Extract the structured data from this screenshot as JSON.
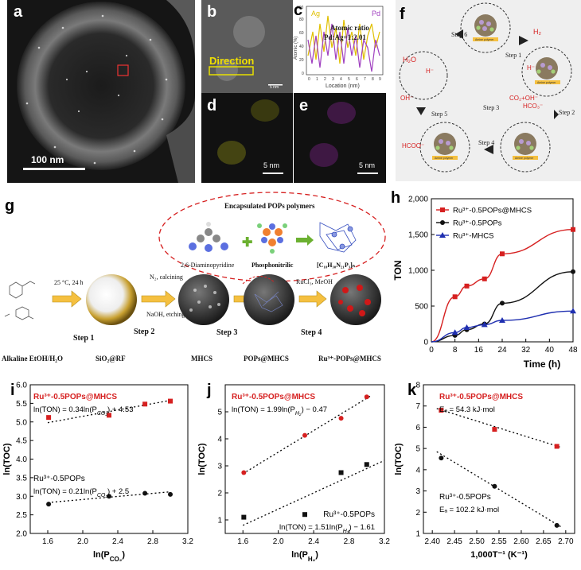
{
  "panel_letters": {
    "a": "a",
    "b": "b",
    "c": "c",
    "d": "d",
    "e": "e",
    "f": "f",
    "g": "g",
    "h": "h",
    "i": "i",
    "j": "j",
    "k": "k"
  },
  "panel_a": {
    "scale": "100 nm"
  },
  "panel_b": {
    "label": "Direction",
    "scale": "5 nm"
  },
  "panel_c": {
    "ag": "Ag",
    "pd": "Pd",
    "ratio_title": "Atomic ratio",
    "ratio_value": "Pd:Ag=1:2.01",
    "ylabel": "Atomic (%)",
    "xlabel": "Location (nm)",
    "xticks": [
      "0",
      "1",
      "2",
      "3",
      "4",
      "5",
      "6",
      "7",
      "8",
      "9"
    ],
    "yticks": [
      "0",
      "20",
      "40",
      "60",
      "80",
      "100"
    ]
  },
  "panel_d": {
    "scale": "5 nm"
  },
  "panel_e": {
    "scale": "5 nm"
  },
  "panel_f": {
    "steps": [
      "Step 6",
      "Step 1",
      "Step 3",
      "Step 2",
      "Step 4",
      "Step 5"
    ],
    "species": {
      "h2": "H₂",
      "h2o": "H₂O",
      "oh": "OH⁻",
      "co2oh": "CO₂+OH⁻",
      "hco3": "HCO₃⁻",
      "hcoo": "HCOO⁻",
      "h": "H⁻"
    },
    "support": "Amine polymer"
  },
  "panel_g": {
    "bubble_title": "Encapsulated POPs polymers",
    "mol1": "2,6-Diaminopyridine",
    "mol2": "Phosphonitrilic",
    "mol3": "[C₁₈H₃₀N₂₁P₃]ₙ",
    "cond1": "25 °C, 24 h",
    "cond2a": "N₂, calcining",
    "cond2b": "NaOH, etching",
    "cond4": "RuCl₃, MeOH",
    "step1": "Step 1",
    "step2": "Step 2",
    "step3": "Step 3",
    "step4": "Step 4",
    "lbl_start": "Alkaline EtOH/H₂O",
    "lbl_sio2": "SiO₂@RF",
    "lbl_mhcs": "MHCS",
    "lbl_pops": "POPs@MHCS",
    "lbl_ru": "Ru³⁺-POPs@MHCS"
  },
  "colors": {
    "red": "#d62020",
    "black": "#111111",
    "blue": "#1f2fb0",
    "yellow": "#f0c020",
    "purple": "#9040c0"
  },
  "chart_data": [
    {
      "panel": "h",
      "type": "line",
      "xlabel": "Time (h)",
      "ylabel": "TON",
      "xlim": [
        0,
        48
      ],
      "ylim": [
        0,
        2000
      ],
      "xticks": [
        0,
        8,
        16,
        24,
        32,
        40,
        48
      ],
      "yticks": [
        0,
        500,
        1000,
        1500,
        2000
      ],
      "xtick_labels": [
        "0",
        "8",
        "16",
        "24",
        "32",
        "40",
        "48"
      ],
      "ytick_labels": [
        "0",
        "500",
        "1,000",
        "1,500",
        "2,000"
      ],
      "legend_position": "top-left",
      "series": [
        {
          "name": "Ru³⁺-0.5POPs@MHCS",
          "color": "#d62020",
          "marker": "square",
          "x": [
            0,
            8,
            12,
            18,
            24,
            48
          ],
          "y": [
            0,
            630,
            780,
            880,
            1230,
            1570
          ]
        },
        {
          "name": "Ru³⁺-0.5POPs",
          "color": "#111111",
          "marker": "circle",
          "x": [
            0,
            8,
            12,
            18,
            24,
            48
          ],
          "y": [
            0,
            90,
            170,
            250,
            540,
            980
          ]
        },
        {
          "name": "Ru³⁺-MHCS",
          "color": "#1f2fb0",
          "marker": "triangle",
          "x": [
            0,
            8,
            12,
            18,
            24,
            48
          ],
          "y": [
            0,
            130,
            200,
            240,
            300,
            430
          ]
        }
      ]
    },
    {
      "panel": "i",
      "type": "scatter",
      "xlabel": "ln(P",
      "xlabel_sub": "CO₂",
      "ylabel": "ln(TOC)",
      "xlim": [
        1.4,
        3.2
      ],
      "ylim": [
        2.0,
        6.0
      ],
      "xticks": [
        1.6,
        2.0,
        2.4,
        2.8,
        3.2
      ],
      "yticks": [
        2.0,
        2.5,
        3.0,
        3.5,
        4.0,
        4.5,
        5.0,
        5.5,
        6.0
      ],
      "xtick_labels": [
        "1.6",
        "2.0",
        "2.4",
        "2.8",
        "3.2"
      ],
      "ytick_labels": [
        "2.0",
        "2.5",
        "3.0",
        "3.5",
        "4.0",
        "4.5",
        "5.0",
        "5.5",
        "6.0"
      ],
      "series": [
        {
          "name": "Ru³⁺-0.5POPs@MHCS",
          "color": "#d62020",
          "marker": "square",
          "x": [
            1.61,
            2.3,
            2.71,
            3.0
          ],
          "y": [
            5.12,
            5.18,
            5.48,
            5.56
          ],
          "fit": [
            [
              1.6,
              4.98
            ],
            [
              3.0,
              5.58
            ]
          ]
        },
        {
          "name": "Ru³⁺-0.5POPs",
          "color": "#111111",
          "marker": "circle",
          "x": [
            1.61,
            2.3,
            2.71,
            3.0
          ],
          "y": [
            2.79,
            3.0,
            3.08,
            3.05
          ],
          "fit": [
            [
              1.6,
              2.83
            ],
            [
              3.0,
              3.12
            ]
          ]
        }
      ],
      "annotations": {
        "t1": "Ru³⁺-0.5POPs@MHCS",
        "e1": "ln(TON) = 0.34ln(P",
        "e1s": "CO₂",
        "e1e": ") + 4.53",
        "t2": "Ru³⁺-0.5POPs",
        "e2": "ln(TON) = 0.21ln(P",
        "e2s": "CO₂",
        "e2e": ") + 2.5"
      }
    },
    {
      "panel": "j",
      "type": "scatter",
      "xlabel": "ln(P",
      "xlabel_sub": "H₂",
      "ylabel": "ln(TOC)",
      "xlim": [
        1.4,
        3.2
      ],
      "ylim": [
        0.5,
        6.0
      ],
      "xticks": [
        1.6,
        2.0,
        2.4,
        2.8,
        3.2
      ],
      "yticks": [
        1,
        2,
        3,
        4,
        5
      ],
      "xtick_labels": [
        "1.6",
        "2.0",
        "2.4",
        "2.8",
        "3.2"
      ],
      "ytick_labels": [
        "1",
        "2",
        "3",
        "4",
        "5"
      ],
      "series": [
        {
          "name": "Ru³⁺-0.5POPs@MHCS",
          "color": "#d62020",
          "marker": "circle",
          "x": [
            1.61,
            2.3,
            2.71,
            3.0
          ],
          "y": [
            2.75,
            4.13,
            4.76,
            5.55
          ],
          "fit": [
            [
              1.6,
              2.71
            ],
            [
              3.05,
              5.6
            ]
          ]
        },
        {
          "name": "Ru³⁺-0.5POPs",
          "color": "#111111",
          "marker": "square",
          "x": [
            1.61,
            2.3,
            2.71,
            3.0
          ],
          "y": [
            1.1,
            1.2,
            2.75,
            3.05
          ],
          "fit": [
            [
              1.6,
              0.8
            ],
            [
              3.2,
              3.2
            ]
          ]
        }
      ],
      "annotations": {
        "t1": "Ru³⁺-0.5POPs@MHCS",
        "e1": "ln(TON) = 1.99ln(P",
        "e1s": "H₂",
        "e1e": ") − 0.47",
        "t2": "Ru³⁺-0.5POPs",
        "e2": "ln(TON) = 1.51ln(P",
        "e2s": "H₂",
        "e2e": ") − 1.61"
      }
    },
    {
      "panel": "k",
      "type": "scatter",
      "xlabel": "1,000T⁻¹ (K⁻¹)",
      "ylabel": "ln(TOC)",
      "xlim": [
        2.38,
        2.72
      ],
      "ylim": [
        1.0,
        8.0
      ],
      "xticks": [
        2.4,
        2.45,
        2.5,
        2.55,
        2.6,
        2.65,
        2.7
      ],
      "yticks": [
        1,
        2,
        3,
        4,
        5,
        6,
        7,
        8
      ],
      "xtick_labels": [
        "2.40",
        "2.45",
        "2.50",
        "2.55",
        "2.60",
        "2.65",
        "2.70"
      ],
      "ytick_labels": [
        "1",
        "2",
        "3",
        "4",
        "5",
        "6",
        "7",
        "8"
      ],
      "series": [
        {
          "name": "Ru³⁺-0.5POPs@MHCS",
          "color": "#d62020",
          "marker": "square",
          "x": [
            2.42,
            2.54,
            2.68
          ],
          "y": [
            6.8,
            5.9,
            5.1
          ],
          "fit": [
            [
              2.41,
              6.88
            ],
            [
              2.69,
              5.05
            ]
          ]
        },
        {
          "name": "Ru³⁺-0.5POPs",
          "color": "#111111",
          "marker": "circle",
          "x": [
            2.42,
            2.54,
            2.68
          ],
          "y": [
            4.55,
            3.22,
            1.38
          ],
          "fit": [
            [
              2.41,
              4.85
            ],
            [
              2.69,
              1.3
            ]
          ]
        }
      ],
      "annotations": {
        "t1": "Ru³⁺-0.5POPs@MHCS",
        "e1": "Eₐ = 54.3 kJ·mol",
        "t2": "Ru³⁺-0.5POPs",
        "e2": "Eₐ = 102.2 kJ·mol"
      }
    }
  ]
}
